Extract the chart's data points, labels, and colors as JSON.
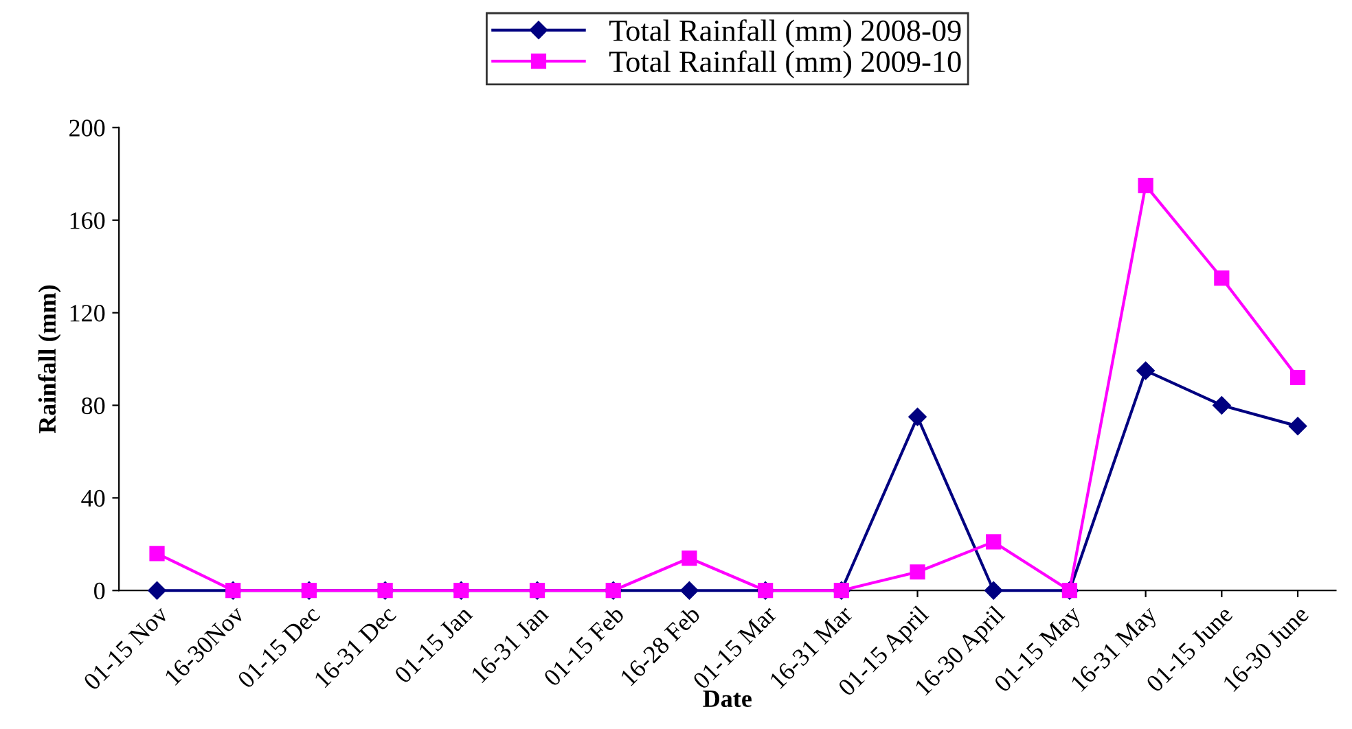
{
  "chart_data": {
    "type": "line",
    "xlabel": "Date",
    "ylabel": "Rainfall (mm)",
    "categories": [
      "01-15 Nov",
      "16-30Nov",
      "01-15 Dec",
      "16-31 Dec",
      "01-15 Jan",
      "16-31 Jan",
      "01-15 Feb",
      "16-28 Feb",
      "01-15 Mar",
      "16-31 Mar",
      "01-15 April",
      "16-30 April",
      "01-15 May",
      "16-31 May",
      "01-15 June",
      "16-30 June"
    ],
    "series": [
      {
        "name": "Total Rainfall (mm) 2008-09",
        "color": "#000080",
        "marker": "diamond",
        "values": [
          0,
          0,
          0,
          0,
          0,
          0,
          0,
          0,
          0,
          0,
          75,
          0,
          0,
          95,
          80,
          71
        ]
      },
      {
        "name": "Total Rainfall (mm) 2009-10",
        "color": "#ff00ff",
        "marker": "square",
        "values": [
          16,
          0,
          0,
          0,
          0,
          0,
          0,
          14,
          0,
          0,
          8,
          21,
          0,
          175,
          135,
          92
        ]
      }
    ],
    "ylim": [
      0,
      200
    ],
    "yticks": [
      0,
      40,
      80,
      120,
      160,
      200
    ],
    "grid": false,
    "legend": "top"
  }
}
